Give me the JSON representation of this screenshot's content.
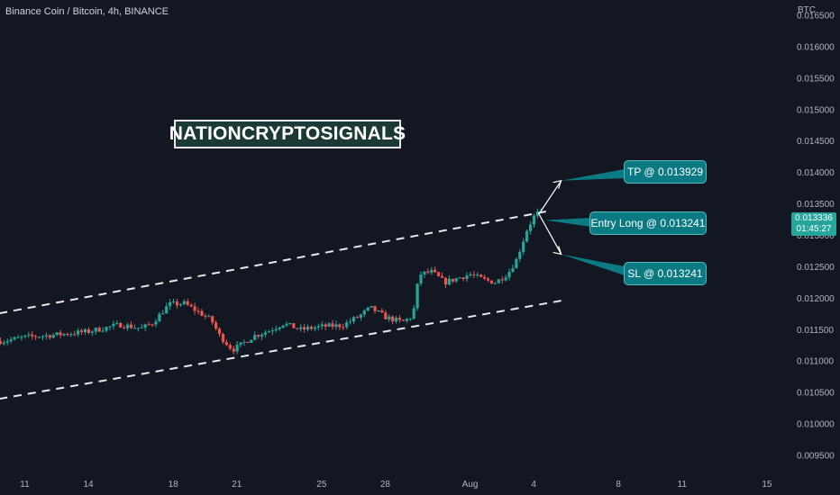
{
  "header": {
    "symbol_title": "Binance Coin / Bitcoin, 4h, BINANCE",
    "currency": "BTC"
  },
  "watermark": {
    "text": "NATIONCRYPTOSIGNALS"
  },
  "callouts": {
    "tp": "TP @ 0.013929",
    "entry": "Entry Long @ 0.013241",
    "sl": "SL @ 0.013241"
  },
  "last_price": {
    "value": "0.013336",
    "countdown": "01:45:27",
    "color": "#26a69a"
  },
  "colors": {
    "up": "#26a69a",
    "down": "#ef5350",
    "background": "#131722",
    "callout": "#0b7a82"
  },
  "chart_data": {
    "type": "candlestick",
    "timeframe": "4h",
    "y_axis": {
      "ticks": [
        "0.016500",
        "0.016000",
        "0.015500",
        "0.015000",
        "0.014500",
        "0.014000",
        "0.013500",
        "0.013000",
        "0.012500",
        "0.012000",
        "0.011500",
        "0.011000",
        "0.010500",
        "0.010000",
        "0.009500"
      ],
      "ylim": [
        0.0093,
        0.0166
      ]
    },
    "x_axis": {
      "ticks": [
        {
          "label": "11",
          "day": 11
        },
        {
          "label": "14",
          "day": 14
        },
        {
          "label": "18",
          "day": 18
        },
        {
          "label": "21",
          "day": 21
        },
        {
          "label": "25",
          "day": 25
        },
        {
          "label": "28",
          "day": 28
        },
        {
          "label": "Aug",
          "day": 32
        },
        {
          "label": "4",
          "day": 35
        },
        {
          "label": "8",
          "day": 39
        },
        {
          "label": "11",
          "day": 42
        },
        {
          "label": "15",
          "day": 46
        }
      ]
    },
    "price_path": [
      [
        10,
        0.01132
      ],
      [
        11,
        0.01138
      ],
      [
        12.5,
        0.01142
      ],
      [
        14,
        0.01147
      ],
      [
        15.5,
        0.01158
      ],
      [
        16.5,
        0.01152
      ],
      [
        17,
        0.0116
      ],
      [
        17.8,
        0.0119
      ],
      [
        18.5,
        0.01192
      ],
      [
        19.2,
        0.01178
      ],
      [
        19.8,
        0.01165
      ],
      [
        20.2,
        0.0114
      ],
      [
        20.8,
        0.01118
      ],
      [
        21.2,
        0.01126
      ],
      [
        21.8,
        0.0114
      ],
      [
        22.5,
        0.01148
      ],
      [
        23.2,
        0.0116
      ],
      [
        24,
        0.0115
      ],
      [
        25,
        0.01155
      ],
      [
        26,
        0.01157
      ],
      [
        26.8,
        0.01172
      ],
      [
        27.3,
        0.01185
      ],
      [
        28,
        0.0117
      ],
      [
        28.8,
        0.01162
      ],
      [
        29.3,
        0.01172
      ],
      [
        29.6,
        0.01238
      ],
      [
        30.2,
        0.01242
      ],
      [
        30.8,
        0.01225
      ],
      [
        31.5,
        0.01233
      ],
      [
        32,
        0.01238
      ],
      [
        32.6,
        0.0123
      ],
      [
        33.2,
        0.01225
      ],
      [
        33.8,
        0.0124
      ],
      [
        34.2,
        0.01262
      ],
      [
        34.7,
        0.0131
      ],
      [
        35.1,
        0.01335
      ],
      [
        35.4,
        0.01334
      ]
    ],
    "channel": {
      "upper": {
        "p1": [
          9.8,
          0.01176
        ],
        "p2": [
          35.6,
          0.01338
        ]
      },
      "lower": {
        "p1": [
          9.8,
          0.0104
        ],
        "p2": [
          36.3,
          0.01196
        ]
      }
    },
    "annotations": [
      {
        "label": "TP @ 0.013929",
        "price": 0.013929
      },
      {
        "label": "Entry Long @ 0.013241",
        "price": 0.013241
      },
      {
        "label": "SL @ 0.013241",
        "price": 0.013241
      }
    ],
    "last_price": 0.013336,
    "grid": false
  }
}
